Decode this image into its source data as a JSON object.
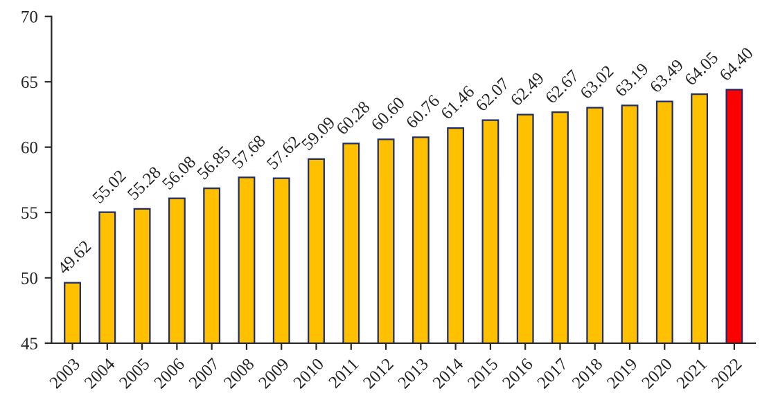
{
  "chart_data": {
    "type": "bar",
    "categories": [
      "2003",
      "2004",
      "2005",
      "2006",
      "2007",
      "2008",
      "2009",
      "2010",
      "2011",
      "2012",
      "2013",
      "2014",
      "2015",
      "2016",
      "2017",
      "2018",
      "2019",
      "2020",
      "2021",
      "2022"
    ],
    "values": [
      49.62,
      55.02,
      55.28,
      56.08,
      56.85,
      57.68,
      57.62,
      59.09,
      60.28,
      60.6,
      60.76,
      61.46,
      62.07,
      62.49,
      62.67,
      63.02,
      63.19,
      63.49,
      64.05,
      64.4
    ],
    "colors": [
      "#ffc000",
      "#ffc000",
      "#ffc000",
      "#ffc000",
      "#ffc000",
      "#ffc000",
      "#ffc000",
      "#ffc000",
      "#ffc000",
      "#ffc000",
      "#ffc000",
      "#ffc000",
      "#ffc000",
      "#ffc000",
      "#ffc000",
      "#ffc000",
      "#ffc000",
      "#ffc000",
      "#ffc000",
      "#ff0000"
    ],
    "value_labels": [
      "49.62",
      "55.02",
      "55.28",
      "56.08",
      "56.85",
      "57.68",
      "57.62",
      "59.09",
      "60.28",
      "60.60",
      "60.76",
      "61.46",
      "62.07",
      "62.49",
      "62.67",
      "63.02",
      "63.19",
      "63.49",
      "64.05",
      "64.40"
    ],
    "ylim": [
      45,
      70
    ],
    "yticks": [
      45,
      50,
      55,
      60,
      65,
      70
    ],
    "grid": false,
    "legend": false
  }
}
